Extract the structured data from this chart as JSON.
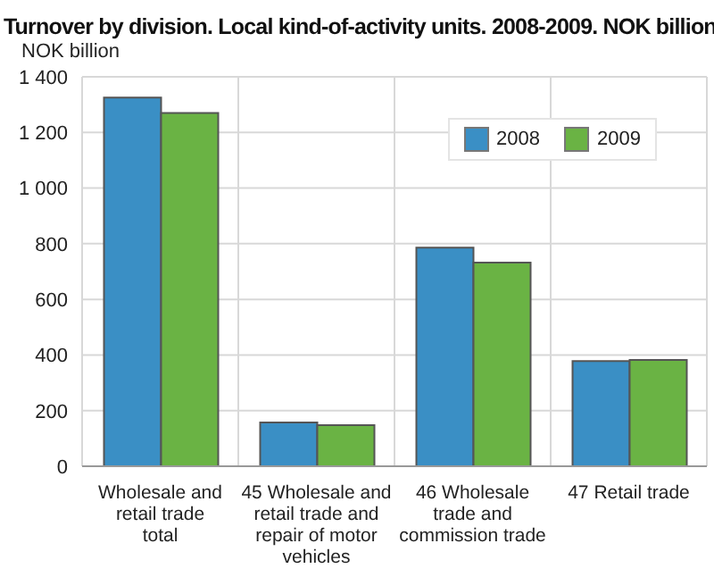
{
  "chart_data": {
    "type": "bar",
    "title": "Turnover by division. Local kind-of-activity units. 2008-2009. NOK billion",
    "ylabel": "NOK billion",
    "categories": [
      "Wholesale and retail trade total",
      "45 Wholesale and retail trade and repair of motor vehicles",
      "46 Wholesale trade and commission trade",
      "47 Retail trade"
    ],
    "series": [
      {
        "name": "2008",
        "color": "#3a8fc5",
        "values": [
          1325,
          157,
          786,
          378
        ]
      },
      {
        "name": "2009",
        "color": "#6ab344",
        "values": [
          1270,
          148,
          732,
          382
        ]
      }
    ],
    "ylim": [
      0,
      1400
    ],
    "yticks": [
      0,
      200,
      400,
      600,
      800,
      {
        "value": 1000,
        "label": "1 000"
      },
      {
        "value": 1200,
        "label": "1 200"
      },
      {
        "value": 1400,
        "label": "1 400"
      }
    ],
    "grid": true,
    "legend": "top right"
  }
}
